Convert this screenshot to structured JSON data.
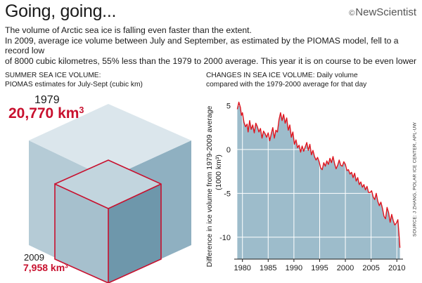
{
  "header": {
    "title": "Going, going...",
    "logo": "NewScientist",
    "logo_symbol": "©",
    "intro_line1": "The volume of Arctic sea ice is falling even faster than the extent.",
    "intro_line2": "In 2009, average ice volume between July and September, as estimated by the PIOMAS model, fell to a record low",
    "intro_line3": "of 8000 cubic kilometres, 55% less than the 1979 to 2000 average. This year it is on course to be even lower"
  },
  "left_panel": {
    "heading_line1": "SUMMER SEA ICE VOLUME:",
    "heading_line2": "PIOMAS estimates for July-Sept  (cubic km)",
    "year_1979": "1979",
    "value_1979": "20,770 km",
    "year_2009": "2009",
    "value_2009": "7,958 km",
    "unit_exponent": "3",
    "volumes_km3": {
      "1979": 20770,
      "2009": 7958
    },
    "colors": {
      "large_cube": "#b5cbd6",
      "small_cube": "#6e97ab",
      "highlight": "#c8102e"
    }
  },
  "right_panel": {
    "heading_line1": "CHANGES IN SEA ICE VOLUME: Daily volume",
    "heading_line2": "compared with the 1979-2000 average for that day",
    "source": "SOURCE: J ZHANG, POLAR ICE CENTER, APL-UW"
  },
  "chart_data": {
    "type": "area",
    "ylabel": "Difference in ice volume from 1979-2009 average",
    "ylabel_unit": "(1000 km³)",
    "xlabel": "",
    "xlim": [
      1978.4,
      2011.2
    ],
    "ylim": [
      -12.5,
      6
    ],
    "xticks": [
      1980,
      1985,
      1990,
      1995,
      2000,
      2005,
      2010
    ],
    "yticks": [
      5,
      0,
      -5,
      -10
    ],
    "grid": true,
    "colors": {
      "fill": "#9dbccb",
      "line": "#e0141e",
      "grid": "#ffffff"
    },
    "series": [
      {
        "x": [
          1979.0,
          1979.3,
          1979.6,
          1979.8,
          1980.0,
          1980.3,
          1980.6,
          1980.9,
          1981.1,
          1981.4,
          1981.7,
          1982.0,
          1982.3,
          1982.6,
          1982.9,
          1983.2,
          1983.5,
          1983.8,
          1984.1,
          1984.4,
          1984.7,
          1985.0,
          1985.3,
          1985.6,
          1985.9,
          1986.2,
          1986.5,
          1986.8,
          1987.1,
          1987.4,
          1987.7,
          1988.0,
          1988.3,
          1988.6,
          1988.9,
          1989.2,
          1989.5,
          1989.8,
          1990.1,
          1990.4,
          1990.7,
          1991.0,
          1991.3,
          1991.6,
          1991.9,
          1992.2,
          1992.5,
          1992.8,
          1993.1,
          1993.4,
          1993.7,
          1994.0,
          1994.3,
          1994.6,
          1994.9,
          1995.2,
          1995.5,
          1995.8,
          1996.1,
          1996.4,
          1996.7,
          1997.0,
          1997.3,
          1997.6,
          1997.9,
          1998.2,
          1998.5,
          1998.8,
          1999.1,
          1999.4,
          1999.7,
          2000.0,
          2000.3,
          2000.6,
          2000.9,
          2001.2,
          2001.5,
          2001.8,
          2002.1,
          2002.4,
          2002.7,
          2003.0,
          2003.3,
          2003.6,
          2003.9,
          2004.2,
          2004.5,
          2004.8,
          2005.1,
          2005.4,
          2005.7,
          2006.0,
          2006.3,
          2006.6,
          2006.9,
          2007.2,
          2007.5,
          2007.8,
          2008.1,
          2008.4,
          2008.7,
          2009.0,
          2009.3,
          2009.6,
          2009.9,
          2010.2,
          2010.4,
          2010.6
        ],
        "y": [
          4.6,
          5.4,
          4.8,
          3.9,
          4.2,
          3.1,
          2.6,
          2.9,
          2.0,
          3.3,
          2.3,
          2.8,
          1.9,
          3.0,
          2.6,
          2.0,
          2.4,
          1.3,
          2.1,
          1.8,
          1.4,
          1.9,
          1.0,
          1.8,
          2.5,
          1.3,
          2.2,
          2.0,
          3.4,
          4.2,
          3.3,
          4.0,
          3.0,
          3.6,
          2.2,
          2.8,
          1.4,
          2.0,
          0.6,
          1.1,
          0.2,
          0.5,
          -0.3,
          0.4,
          -0.2,
          0.3,
          0.8,
          -0.1,
          0.6,
          -0.6,
          -0.1,
          -0.8,
          -1.2,
          -0.9,
          -1.4,
          -2.1,
          -2.3,
          -1.5,
          -1.9,
          -1.3,
          -1.7,
          -1.0,
          -1.5,
          -0.8,
          -1.6,
          -2.2,
          -1.8,
          -1.2,
          -1.8,
          -1.9,
          -1.4,
          -1.7,
          -2.4,
          -2.3,
          -2.8,
          -2.6,
          -3.2,
          -2.7,
          -3.6,
          -3.2,
          -4.0,
          -3.7,
          -4.3,
          -4.0,
          -4.6,
          -4.2,
          -4.9,
          -4.9,
          -4.7,
          -5.4,
          -5.7,
          -5.0,
          -5.9,
          -6.4,
          -6.0,
          -6.7,
          -7.6,
          -7.9,
          -6.6,
          -7.2,
          -8.3,
          -7.4,
          -8.1,
          -8.6,
          -8.4,
          -8.0,
          -9.5,
          -11.2
        ]
      }
    ]
  }
}
